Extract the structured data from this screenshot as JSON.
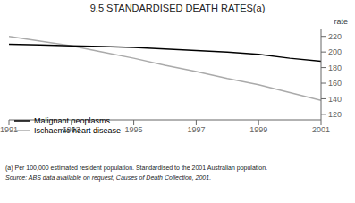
{
  "chart_data": {
    "type": "line",
    "title": "9.5   STANDARDISED DEATH RATES(a)",
    "y_label": "rate",
    "x": [
      1991,
      1992,
      1993,
      1994,
      1995,
      1996,
      1997,
      1998,
      1999,
      2000,
      2001
    ],
    "series": [
      {
        "name": "Malignant neoplasms",
        "color": "#000000",
        "values": [
          210,
          209,
          208,
          207,
          206,
          204,
          202,
          200,
          197,
          192,
          188
        ]
      },
      {
        "name": "Ischaemic heart disease",
        "color": "#aaaaaa",
        "values": [
          220,
          214,
          208,
          200,
          192,
          183,
          175,
          166,
          158,
          148,
          138
        ]
      }
    ],
    "xlim": [
      1991,
      2001
    ],
    "xticks": [
      1991,
      1993,
      1995,
      1997,
      1999,
      2001
    ],
    "ylim": [
      113,
      230
    ],
    "yticks": [
      120,
      140,
      160,
      180,
      200,
      220
    ],
    "grid": false,
    "legend": "lower left",
    "annotations": [
      "(a) Per 100,000 estimated resident population. Standardised to the 2001 Australian population.",
      "Source: ABS data available on request, Causes of Death Collection, 2001."
    ]
  }
}
